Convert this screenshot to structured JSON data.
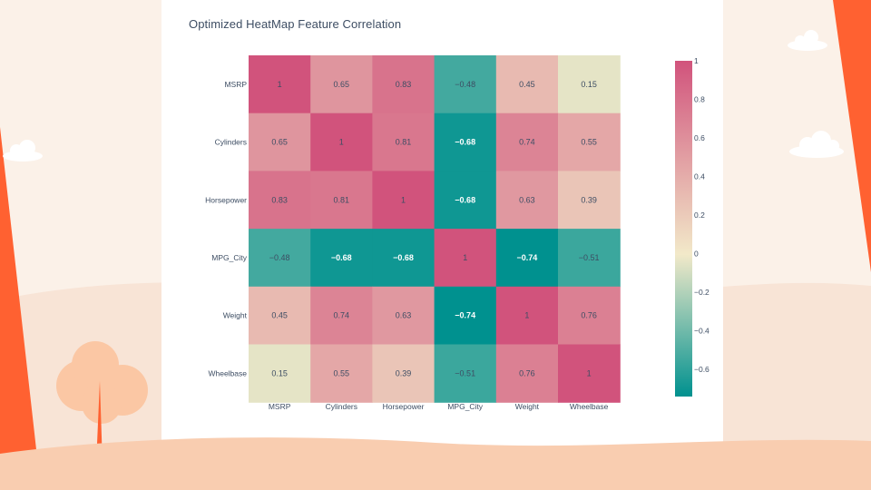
{
  "colors": {
    "accent_orange": "#ff6131",
    "light_peach": "#f9cdb0",
    "panel": "#ffffff",
    "background": "#fbf1e8",
    "scale_low": "#00918f",
    "scale_mid": "#f2e9c9",
    "scale_high": "#d1537c"
  },
  "chart_data": {
    "type": "heatmap",
    "title": "Optimized HeatMap Feature Correlation",
    "x": [
      "MSRP",
      "Cylinders",
      "Horsepower",
      "MPG_City",
      "Weight",
      "Wheelbase"
    ],
    "y": [
      "MSRP",
      "Cylinders",
      "Horsepower",
      "MPG_City",
      "Weight",
      "Wheelbase"
    ],
    "z": [
      [
        1,
        0.65,
        0.83,
        -0.48,
        0.45,
        0.15
      ],
      [
        0.65,
        1,
        0.81,
        -0.68,
        0.74,
        0.55
      ],
      [
        0.83,
        0.81,
        1,
        -0.68,
        0.63,
        0.39
      ],
      [
        -0.48,
        -0.68,
        -0.68,
        1,
        -0.74,
        -0.51
      ],
      [
        0.45,
        0.74,
        0.63,
        -0.74,
        1,
        0.76
      ],
      [
        0.15,
        0.55,
        0.39,
        -0.51,
        0.76,
        1
      ]
    ],
    "zlim": [
      -0.74,
      1
    ],
    "colorbar_ticks": [
      1,
      0.8,
      0.6,
      0.4,
      0.2,
      0,
      -0.2,
      -0.4,
      -0.6
    ],
    "cell_labels": [
      [
        "1",
        "0.65",
        "0.83",
        "−0.48",
        "0.45",
        "0.15"
      ],
      [
        "0.65",
        "1",
        "0.81",
        "−0.68",
        "0.74",
        "0.55"
      ],
      [
        "0.83",
        "0.81",
        "1",
        "−0.68",
        "0.63",
        "0.39"
      ],
      [
        "−0.48",
        "−0.68",
        "−0.68",
        "1",
        "−0.74",
        "−0.51"
      ],
      [
        "0.45",
        "0.74",
        "0.63",
        "−0.74",
        "1",
        "0.76"
      ],
      [
        "0.15",
        "0.55",
        "0.39",
        "−0.51",
        "0.76",
        "1"
      ]
    ],
    "colorbar_labels": [
      "1",
      "0.8",
      "0.6",
      "0.4",
      "0.2",
      "0",
      "−0.2",
      "−0.4",
      "−0.6"
    ]
  }
}
